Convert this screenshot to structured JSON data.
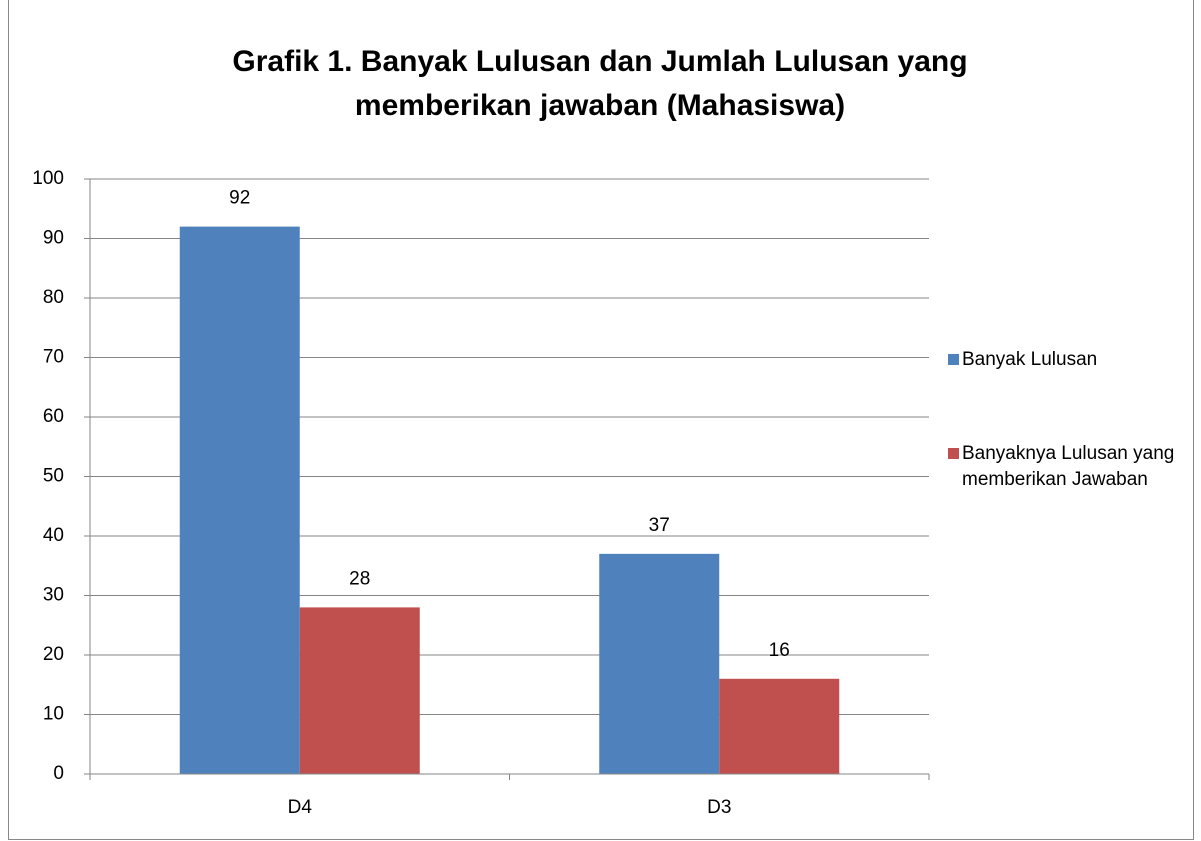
{
  "chart_data": {
    "type": "bar",
    "title": "Grafik 1. Banyak Lulusan dan Jumlah Lulusan yang memberikan jawaban (Mahasiswa)",
    "categories": [
      "D4",
      "D3"
    ],
    "series": [
      {
        "name": "Banyak Lulusan",
        "color": "#4f81bd",
        "values": [
          92,
          37
        ]
      },
      {
        "name": "Banyaknya Lulusan yang memberikan Jawaban",
        "color": "#c0504d",
        "values": [
          28,
          16
        ]
      }
    ],
    "ylim": [
      0,
      100
    ],
    "yticks": [
      0,
      10,
      20,
      30,
      40,
      50,
      60,
      70,
      80,
      90,
      100
    ],
    "grid": true,
    "legend": "right"
  }
}
